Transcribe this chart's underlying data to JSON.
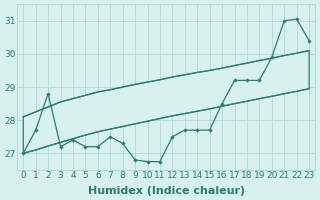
{
  "xlabel": "Humidex (Indice chaleur)",
  "ylim": [
    26.5,
    31.5
  ],
  "xlim": [
    -0.5,
    23.5
  ],
  "yticks": [
    27,
    28,
    29,
    30,
    31
  ],
  "xticks": [
    0,
    1,
    2,
    3,
    4,
    5,
    6,
    7,
    8,
    9,
    10,
    11,
    12,
    13,
    14,
    15,
    16,
    17,
    18,
    19,
    20,
    21,
    22,
    23
  ],
  "x_labels": [
    "0",
    "1",
    "2",
    "3",
    "4",
    "5",
    "6",
    "7",
    "8",
    "9",
    "10",
    "11",
    "12",
    "13",
    "14",
    "15",
    "16",
    "17",
    "18",
    "19",
    "20",
    "21",
    "22",
    "23"
  ],
  "main_line": [
    27.0,
    27.7,
    28.8,
    27.2,
    27.4,
    27.2,
    27.2,
    27.5,
    27.3,
    26.8,
    26.75,
    26.75,
    27.5,
    27.7,
    27.7,
    27.7,
    28.5,
    29.2,
    29.2,
    29.2,
    29.9,
    31.0,
    31.05,
    30.4
  ],
  "upper_line": [
    28.1,
    28.25,
    28.4,
    28.55,
    28.65,
    28.75,
    28.85,
    28.92,
    29.0,
    29.08,
    29.15,
    29.22,
    29.3,
    29.37,
    29.44,
    29.5,
    29.57,
    29.65,
    29.72,
    29.8,
    29.87,
    29.95,
    30.02,
    30.1
  ],
  "lower_line": [
    27.0,
    27.1,
    27.22,
    27.33,
    27.44,
    27.55,
    27.65,
    27.73,
    27.81,
    27.89,
    27.97,
    28.05,
    28.13,
    28.2,
    28.27,
    28.34,
    28.42,
    28.5,
    28.57,
    28.65,
    28.72,
    28.8,
    28.87,
    28.95
  ],
  "line_color": "#2e7d6e",
  "bg_color": "#d8f0ee",
  "grid_color": "#b0d8d4",
  "tick_fontsize": 6.5,
  "label_fontsize": 8.0
}
